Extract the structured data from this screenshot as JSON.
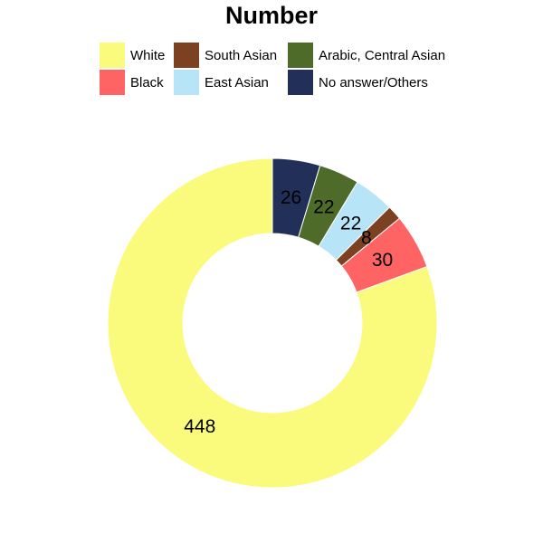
{
  "chart_data": {
    "type": "pie",
    "subtype": "donut",
    "title": "Number",
    "legend_position": "top",
    "slices": [
      {
        "name": "White",
        "value": 448,
        "color": "#FAFA7D"
      },
      {
        "name": "Black",
        "value": 30,
        "color": "#FF6464"
      },
      {
        "name": "South Asian",
        "value": 8,
        "color": "#7B4120"
      },
      {
        "name": "East Asian",
        "value": 22,
        "color": "#B8E4F7"
      },
      {
        "name": "Arabic, Central Asian",
        "value": 22,
        "color": "#4E6B2A"
      },
      {
        "name": "No answer/Others",
        "value": 26,
        "color": "#223059"
      }
    ]
  }
}
